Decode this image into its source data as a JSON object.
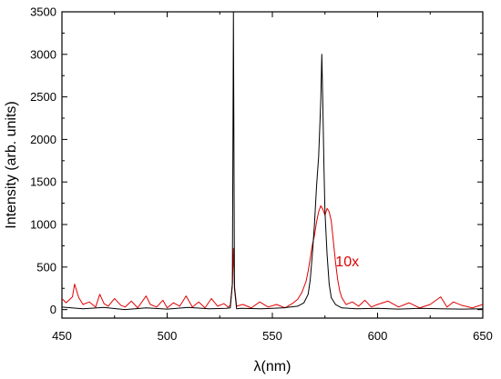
{
  "chart_data": {
    "type": "line",
    "title": "",
    "xlabel": "λ(nm)",
    "ylabel": "Intensity (arb. units)",
    "xlim": [
      450,
      650
    ],
    "ylim": [
      -100,
      3500
    ],
    "x_ticks": [
      450,
      500,
      550,
      600,
      650
    ],
    "y_ticks": [
      0,
      500,
      1000,
      1500,
      2000,
      2500,
      3000,
      3500
    ],
    "x_tick_labels": [
      "450",
      "500",
      "550",
      "600",
      "650"
    ],
    "y_tick_labels": [
      "0",
      "500",
      "1000",
      "1500",
      "2000",
      "2500",
      "3000",
      "3500"
    ],
    "grid": false,
    "legend": "none",
    "annotations": [
      {
        "text": "10x",
        "x": 580,
        "y": 510,
        "color": "#e00000"
      }
    ],
    "series": [
      {
        "color": "#000000",
        "x": [
          450,
          460,
          470,
          480,
          490,
          500,
          510,
          520,
          528,
          530,
          531,
          531.5,
          532,
          533,
          535,
          545,
          555,
          562,
          565,
          567,
          568,
          569,
          570,
          571,
          572,
          573,
          573.5,
          574,
          574.5,
          575,
          576,
          577,
          578,
          580,
          583,
          590,
          600,
          610,
          620,
          630,
          640,
          650
        ],
        "y": [
          30,
          10,
          25,
          0,
          20,
          5,
          25,
          10,
          15,
          20,
          300,
          3500,
          250,
          10,
          15,
          10,
          20,
          40,
          80,
          180,
          350,
          650,
          1000,
          1450,
          1800,
          2450,
          3000,
          2400,
          1700,
          1150,
          650,
          300,
          140,
          60,
          20,
          10,
          15,
          5,
          15,
          10,
          5,
          10
        ]
      },
      {
        "color": "#e00000",
        "x": [
          450,
          452,
          455,
          456,
          458,
          460,
          463,
          466,
          468,
          470,
          472,
          475,
          478,
          480,
          483,
          486,
          490,
          492,
          495,
          498,
          500,
          503,
          506,
          509,
          512,
          515,
          518,
          521,
          524,
          527,
          529,
          530,
          531,
          531.5,
          532,
          533,
          536,
          540,
          544,
          548,
          552,
          556,
          560,
          562,
          564,
          566,
          567,
          568,
          569,
          570,
          571,
          572,
          573,
          574,
          575,
          576,
          577,
          578,
          579,
          580,
          581,
          582,
          583,
          585,
          588,
          591,
          594,
          597,
          600,
          605,
          610,
          615,
          620,
          625,
          630,
          633,
          636,
          640,
          645,
          650
        ],
        "y": [
          130,
          80,
          150,
          300,
          140,
          60,
          90,
          30,
          180,
          70,
          40,
          130,
          50,
          30,
          100,
          20,
          160,
          60,
          30,
          110,
          20,
          80,
          40,
          160,
          30,
          90,
          20,
          130,
          40,
          70,
          30,
          50,
          300,
          720,
          280,
          40,
          60,
          20,
          90,
          30,
          60,
          20,
          80,
          120,
          200,
          330,
          450,
          600,
          760,
          870,
          1030,
          1150,
          1220,
          1180,
          1110,
          1190,
          1150,
          1040,
          800,
          560,
          360,
          220,
          140,
          60,
          90,
          40,
          110,
          30,
          60,
          100,
          30,
          80,
          20,
          60,
          150,
          30,
          90,
          50,
          20,
          60
        ]
      }
    ]
  }
}
